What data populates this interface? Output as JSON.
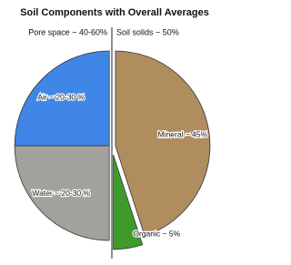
{
  "chart_data": {
    "type": "pie",
    "title": "Soil Components with Overall Averages",
    "group_labels": [
      "Pore space ~ 40-60%",
      "Soil solids ~ 50%"
    ],
    "categories": [
      "Mineral ~ 45%",
      "Organic ~ 5%",
      "Water ~ 20-30 %",
      "Air ~ 20-30 %"
    ],
    "values": [
      45,
      5,
      25,
      25
    ],
    "colors": [
      "#b08d5e",
      "#3f9a2c",
      "#a3a19c",
      "#3f86e6"
    ]
  }
}
